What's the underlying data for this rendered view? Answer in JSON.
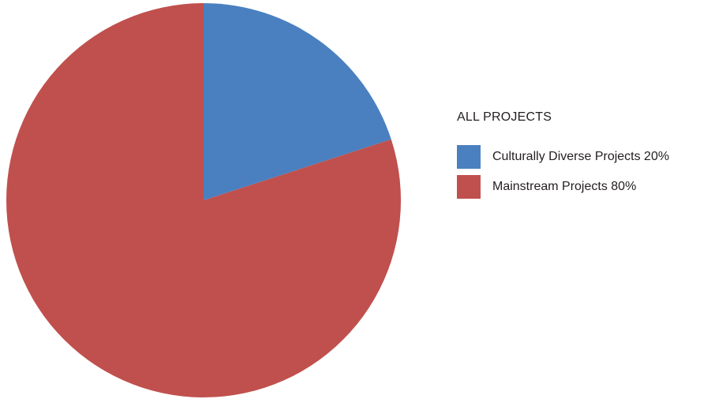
{
  "chart_data": {
    "type": "pie",
    "title": "",
    "legend_title": "ALL PROJECTS",
    "legend_position": "right",
    "slices": [
      {
        "label": "Culturally Diverse Projects",
        "value": 20,
        "display": "Culturally Diverse Projects 20%",
        "color": "#4a80c0"
      },
      {
        "label": "Mainstream Projects",
        "value": 80,
        "display": "Mainstream Projects 80%",
        "color": "#c0504d"
      }
    ]
  }
}
